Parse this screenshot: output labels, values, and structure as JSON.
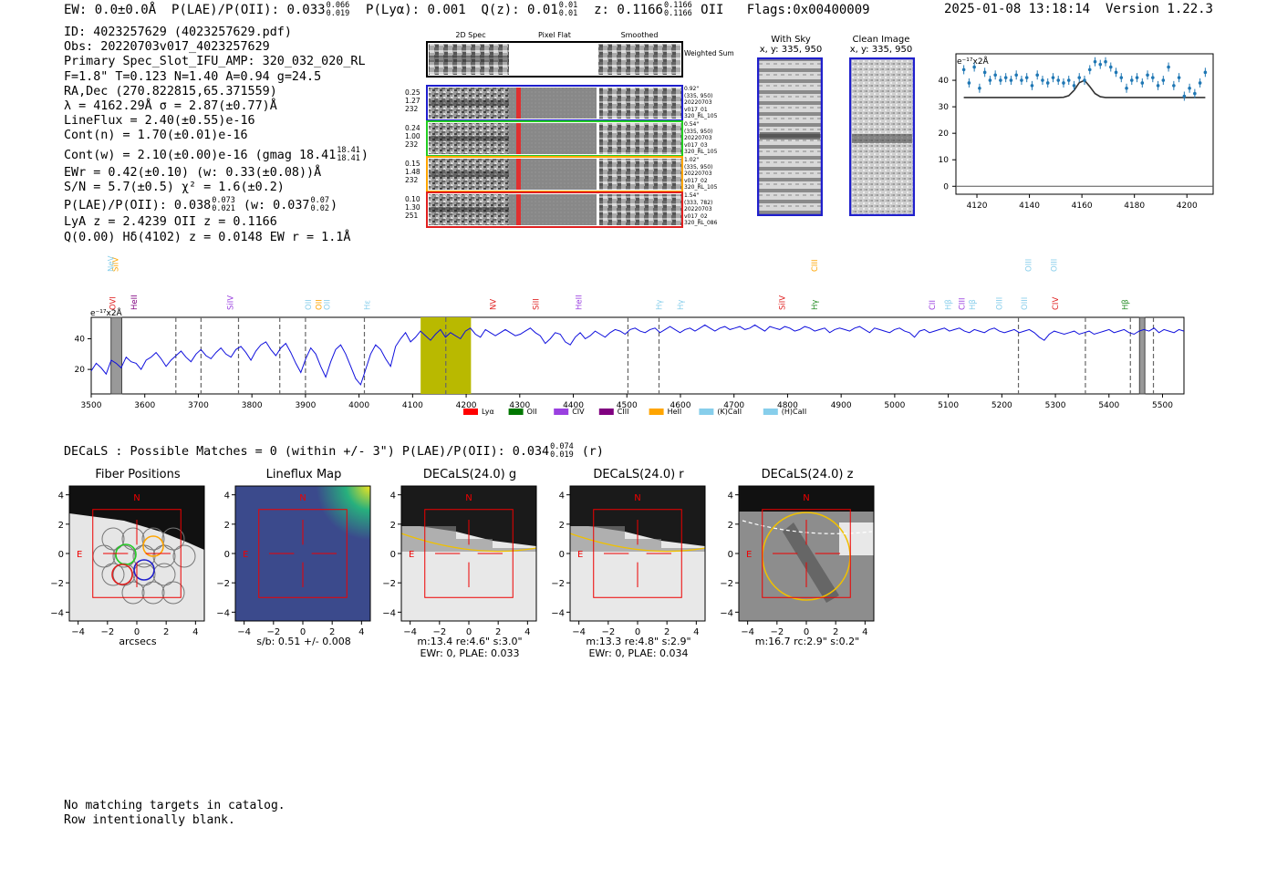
{
  "header": {
    "ew": "EW: 0.0±0.0Å",
    "plae_label": "P(LAE)/P(OII): 0.033",
    "plae_hi": "0.066",
    "plae_lo": "0.019",
    "plya": "P(Lyα): 0.001",
    "qz_label": "Q(z): 0.01",
    "qz_hi": "0.01",
    "qz_lo": "0.01",
    "z_label": "z: 0.1166",
    "z_hi": "0.1166",
    "z_lo": "0.1166",
    "z_line": "OII",
    "flags": "Flags:0x00400009",
    "datetime": "2025-01-08 13:18:14",
    "version": "Version 1.22.3"
  },
  "info": {
    "id": "ID: 4023257629 (4023257629.pdf)",
    "obs": "Obs: 20220703v017_4023257629",
    "primary": "Primary Spec_Slot_IFU_AMP: 320_032_020_RL",
    "fwhm": "F=1.8\"  T=0.123  N=1.40  A=0.94  g=24.5",
    "radec": "RA,Dec (270.822815,65.371559)",
    "lambda": "λ = 4162.29Å  σ = 2.87(±0.77)Å",
    "lineflux": "LineFlux = 2.40(±0.55)e-16",
    "contn": "Cont(n) = 1.70(±0.01)e-16",
    "contw_label": "Cont(w) = 2.10(±0.00)e-16 (gmag 18.41",
    "contw_hi": "18.41",
    "contw_lo": "18.41",
    "contw_end": ")",
    "ewr": "EWr = 0.42(±0.10) (w: 0.33(±0.08))Å",
    "sn": "S/N = 5.7(±0.5)  χ² = 1.6(±0.2)",
    "plae_label": "P(LAE)/P(OII): 0.038",
    "plae_hi": "0.073",
    "plae_lo": "0.021",
    "plae_mid": "(w: 0.037",
    "plae_w_hi": "0.07",
    "plae_w_lo": "0.02",
    "plae_end": ")",
    "lya": "LyA z = 2.4239  OII z = 0.1166",
    "q": "Q(0.00) Hδ(4102) z = 0.0148  EW r = 1.1Å"
  },
  "cutouts": {
    "col_titles": [
      "2D Spec",
      "Pixel Flat",
      "Smoothed"
    ],
    "weighted_sum": "Weighted Sum",
    "rows": [
      {
        "left": [
          "0.25",
          "1.27",
          "232"
        ],
        "right": [
          "0.92\"",
          "(335, 950)",
          "20220703",
          "v017_01",
          "320_RL_105"
        ],
        "color": "#1f1fcc"
      },
      {
        "left": [
          "0.24",
          "1.00",
          "232"
        ],
        "right": [
          "0.54\"",
          "(335, 950)",
          "20220703",
          "v017_03",
          "320_RL_105"
        ],
        "color": "#22cc22"
      },
      {
        "left": [
          "0.15",
          "1.48",
          "232"
        ],
        "right": [
          "1.02\"",
          "(335, 950)",
          "20220703",
          "v017_02",
          "320_RL_105"
        ],
        "color": "#ffa500"
      },
      {
        "left": [
          "0.10",
          "1.30",
          "251"
        ],
        "right": [
          "1.54\"",
          "(333, 782)",
          "20220703",
          "v017_02",
          "320_RL_086"
        ],
        "color": "#e02020"
      }
    ]
  },
  "with_sky": {
    "title": "With Sky",
    "coords": "x, y: 335, 950"
  },
  "clean_image": {
    "title": "Clean Image",
    "coords": "x, y: 335, 950"
  },
  "zoom_chart": {
    "unit": "e⁻¹⁷x2Å",
    "xticks": [
      "4120",
      "4140",
      "4160",
      "4180",
      "4200"
    ],
    "yticks": [
      "0",
      "10",
      "20",
      "30",
      "40"
    ],
    "xlim": [
      4112,
      4210
    ],
    "ylim": [
      -3,
      50
    ],
    "x": [
      4115,
      4117,
      4119,
      4121,
      4123,
      4125,
      4127,
      4129,
      4131,
      4133,
      4135,
      4137,
      4139,
      4141,
      4143,
      4145,
      4147,
      4149,
      4151,
      4153,
      4155,
      4157,
      4159,
      4161,
      4163,
      4165,
      4167,
      4169,
      4171,
      4173,
      4175,
      4177,
      4179,
      4181,
      4183,
      4185,
      4187,
      4189,
      4191,
      4193,
      4195,
      4197,
      4199,
      4201,
      4203,
      4205,
      4207
    ],
    "y": [
      44,
      39,
      45,
      37,
      43,
      40,
      42,
      40,
      41,
      40,
      42,
      40,
      41,
      38,
      42,
      40,
      39,
      41,
      40,
      39,
      40,
      38,
      41,
      40,
      44,
      47,
      46,
      47,
      45,
      43,
      41,
      37,
      40,
      41,
      39,
      42,
      41,
      38,
      40,
      45,
      38,
      41,
      34,
      37,
      35,
      39,
      43
    ],
    "model": [
      33.5,
      33.5,
      33.5,
      33.5,
      33.5,
      33.5,
      33.5,
      33.5,
      33.5,
      33.5,
      33.5,
      33.5,
      33.5,
      33.5,
      33.5,
      33.5,
      33.5,
      33.5,
      33.5,
      33.6,
      34.2,
      36.2,
      39.1,
      40.0,
      37.6,
      35.0,
      33.8,
      33.5,
      33.5,
      33.5,
      33.5,
      33.5,
      33.5,
      33.5,
      33.5,
      33.5,
      33.5,
      33.5,
      33.5,
      33.5,
      33.5,
      33.5,
      33.5,
      33.5,
      33.5,
      33.5,
      33.5
    ]
  },
  "spectrum": {
    "unit": "e⁻¹⁷x2Å",
    "xticks": [
      "3500",
      "3600",
      "3700",
      "3800",
      "3900",
      "4000",
      "4100",
      "4200",
      "4300",
      "4400",
      "4500",
      "4600",
      "4700",
      "4800",
      "4900",
      "5000",
      "5100",
      "5200",
      "5300",
      "5400",
      "5500"
    ],
    "yticks": [
      "20",
      "40"
    ],
    "xlim": [
      3500,
      5540
    ],
    "ylim": [
      4,
      54
    ],
    "line_labels": [
      {
        "text": "OVI",
        "wave": 3540,
        "color": "#e02020",
        "row": 1
      },
      {
        "text": "SiIV",
        "wave": 3545,
        "color": "#ffa500",
        "row": 0
      },
      {
        "text": "NeV",
        "wave": 3537,
        "color": "#87ceeb",
        "row": 0
      },
      {
        "text": "HeII",
        "wave": 3580,
        "color": "#800080",
        "row": 1
      },
      {
        "text": "SiIV",
        "wave": 3760,
        "color": "#9a40e0",
        "row": 1
      },
      {
        "text": "OII",
        "wave": 3905,
        "color": "#87ceeb",
        "row": 1
      },
      {
        "text": "OII",
        "wave": 3925,
        "color": "#ffa500",
        "row": 1
      },
      {
        "text": "OII",
        "wave": 3940,
        "color": "#87ceeb",
        "row": 1
      },
      {
        "text": "Hε",
        "wave": 4015,
        "color": "#87ceeb",
        "row": 1
      },
      {
        "text": "NV",
        "wave": 4250,
        "color": "#e02020",
        "row": 1
      },
      {
        "text": "SiII",
        "wave": 4330,
        "color": "#e02020",
        "row": 1
      },
      {
        "text": "HeII",
        "wave": 4410,
        "color": "#9a40e0",
        "row": 1
      },
      {
        "text": "Hγ",
        "wave": 4560,
        "color": "#87ceeb",
        "row": 1
      },
      {
        "text": "Hγ",
        "wave": 4600,
        "color": "#87ceeb",
        "row": 1
      },
      {
        "text": "SiIV",
        "wave": 4790,
        "color": "#e02020",
        "row": 1
      },
      {
        "text": "Hγ",
        "wave": 4850,
        "color": "#228b22",
        "row": 1
      },
      {
        "text": "CIII",
        "wave": 4850,
        "color": "#ffa500",
        "row": 0
      },
      {
        "text": "CII",
        "wave": 5070,
        "color": "#9a40e0",
        "row": 1
      },
      {
        "text": "Hβ",
        "wave": 5100,
        "color": "#87ceeb",
        "row": 1
      },
      {
        "text": "CIII",
        "wave": 5125,
        "color": "#9a40e0",
        "row": 1
      },
      {
        "text": "Hβ",
        "wave": 5145,
        "color": "#87ceeb",
        "row": 1
      },
      {
        "text": "OIII",
        "wave": 5195,
        "color": "#87ceeb",
        "row": 1
      },
      {
        "text": "OIII",
        "wave": 5242,
        "color": "#87ceeb",
        "row": 1
      },
      {
        "text": "OIII",
        "wave": 5250,
        "color": "#87ceeb",
        "row": 0
      },
      {
        "text": "CIV",
        "wave": 5300,
        "color": "#e02020",
        "row": 1
      },
      {
        "text": "OIII",
        "wave": 5297,
        "color": "#87ceeb",
        "row": 0
      },
      {
        "text": "Hβ",
        "wave": 5430,
        "color": "#228b22",
        "row": 1
      }
    ],
    "dashed_lines": [
      3658,
      3705,
      3775,
      3852,
      3900,
      4010,
      4162,
      4502,
      4560,
      5231,
      5356,
      5440,
      5483
    ],
    "highlight": [
      4115,
      4209
    ],
    "gray_bars": [
      [
        3537,
        3557
      ],
      [
        5457,
        5467
      ]
    ],
    "legend": [
      {
        "label": "Lyα",
        "color": "#ff0000"
      },
      {
        "label": "OII",
        "color": "#007700"
      },
      {
        "label": "CIV",
        "color": "#9a40e0"
      },
      {
        "label": "CIII",
        "color": "#800080"
      },
      {
        "label": "HeII",
        "color": "#ffa500"
      },
      {
        "label": "(K)CaII",
        "color": "#87ceeb"
      },
      {
        "label": "(H)CaII",
        "color": "#87ceeb"
      }
    ],
    "flux": [
      19,
      24,
      21,
      17,
      26,
      24,
      21,
      28,
      25,
      24,
      20,
      26,
      28,
      31,
      27,
      22,
      26,
      29,
      32,
      28,
      25,
      30,
      33,
      29,
      27,
      31,
      34,
      30,
      28,
      33,
      35,
      31,
      26,
      32,
      36,
      38,
      33,
      29,
      34,
      37,
      31,
      24,
      18,
      27,
      34,
      30,
      22,
      15,
      25,
      33,
      36,
      30,
      22,
      14,
      10,
      20,
      30,
      36,
      33,
      27,
      22,
      35,
      40,
      44,
      38,
      41,
      45,
      42,
      39,
      43,
      46,
      41,
      44,
      42,
      40,
      45,
      47,
      43,
      41,
      46,
      44,
      42,
      44,
      46,
      44,
      42,
      43,
      45,
      47,
      44,
      42,
      37,
      40,
      44,
      43,
      38,
      36,
      41,
      44,
      40,
      42,
      45,
      43,
      41,
      44,
      46,
      45,
      43,
      46,
      47,
      45,
      44,
      46,
      47,
      44,
      46,
      48,
      46,
      44,
      46,
      47,
      45,
      47,
      49,
      47,
      45,
      47,
      48,
      46,
      47,
      48,
      46,
      47,
      49,
      47,
      45,
      48,
      47,
      46,
      48,
      47,
      45,
      46,
      48,
      47,
      45,
      46,
      47,
      44,
      46,
      47,
      46,
      45,
      47,
      48,
      46,
      44,
      47,
      46,
      45,
      44,
      46,
      47,
      45,
      44,
      41,
      45,
      46,
      44,
      45,
      46,
      47,
      45,
      46,
      47,
      45,
      44,
      46,
      45,
      44,
      46,
      47,
      45,
      44,
      45,
      46,
      44,
      45,
      46,
      44,
      41,
      39,
      43,
      45,
      44,
      43,
      44,
      45,
      43,
      44,
      45,
      43,
      44,
      45,
      46,
      44,
      45,
      46,
      44,
      43,
      45,
      46,
      45,
      47,
      44,
      46,
      45,
      44,
      46,
      45
    ]
  },
  "decals_line": {
    "label": "DECaLS : Possible Matches = 0 (within +/- 3\")  P(LAE)/P(OII): 0.034",
    "hi": "0.074",
    "lo": "0.019",
    "band": "(r)"
  },
  "panels": [
    {
      "title": "Fiber Positions",
      "caption1": "arcsecs",
      "caption2": ""
    },
    {
      "title": "Lineflux Map",
      "caption1": "s/b: 0.51 +/- 0.008",
      "caption2": ""
    },
    {
      "title": "DECaLS(24.0) g",
      "caption1": "m:13.4  re:4.6\"  s:3.0\"",
      "caption2": "EWr: 0, PLAE: 0.033"
    },
    {
      "title": "DECaLS(24.0) r",
      "caption1": "m:13.3  re:4.8\"  s:2.9\"",
      "caption2": "EWr: 0, PLAE: 0.034"
    },
    {
      "title": "DECaLS(24.0) z",
      "caption1": "m:16.7 rc:2.9\"  s:0.2\"",
      "caption2": ""
    }
  ],
  "panel_axes": {
    "xticks": [
      "−4",
      "−2",
      "0",
      "2",
      "4"
    ],
    "yticks": [
      "4",
      "2",
      "0",
      "−2",
      "−4"
    ],
    "n_label": "N",
    "e_label": "E"
  },
  "footer": {
    "line1": "No matching targets in catalog.",
    "line2": "Row intentionally blank."
  }
}
